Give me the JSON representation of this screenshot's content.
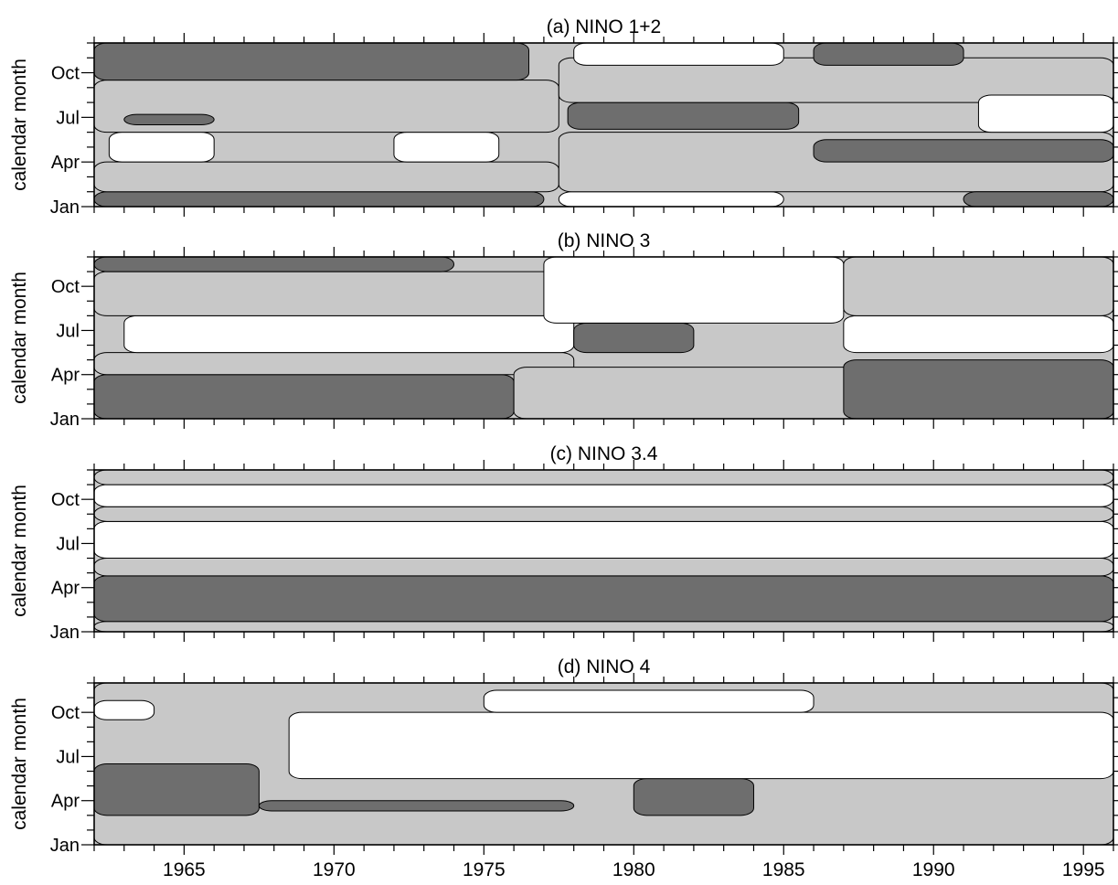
{
  "chart_data": {
    "type": "heatmap",
    "y_axis_label": "calendar month",
    "y_ticks": [
      "Jan",
      "Apr",
      "Jul",
      "Oct"
    ],
    "x_ticks": [
      1965,
      1970,
      1975,
      1980,
      1985,
      1990,
      1995
    ],
    "x_range": [
      1962,
      1996
    ],
    "y_range_months": [
      0,
      11
    ],
    "shading": {
      "low": "#6e6e6e",
      "mid": "#c8c8c8",
      "high": "#ffffff"
    },
    "panels": [
      {
        "title": "(a) NINO 1+2",
        "bands": [
          {
            "shade": "low",
            "y0": 0,
            "y1": 1.0,
            "x0": 1962,
            "x1": 1977
          },
          {
            "shade": "mid",
            "y0": 1.0,
            "y1": 3.0,
            "x0": 1962,
            "x1": 1977.5
          },
          {
            "shade": "high",
            "y0": 3.0,
            "y1": 5.0,
            "x0": 1962.5,
            "x1": 1966
          },
          {
            "shade": "high",
            "y0": 3.0,
            "y1": 5.0,
            "x0": 1972,
            "x1": 1975.5
          },
          {
            "shade": "mid",
            "y0": 5.0,
            "y1": 8.5,
            "x0": 1962,
            "x1": 1977.5
          },
          {
            "shade": "low",
            "y0": 5.5,
            "y1": 6.2,
            "x0": 1963,
            "x1": 1966
          },
          {
            "shade": "low",
            "y0": 8.5,
            "y1": 11,
            "x0": 1962,
            "x1": 1976.5
          },
          {
            "shade": "high",
            "y0": 0,
            "y1": 1.0,
            "x0": 1977.5,
            "x1": 1985
          },
          {
            "shade": "mid",
            "y0": 1.0,
            "y1": 5.0,
            "x0": 1977.5,
            "x1": 1996
          },
          {
            "shade": "low",
            "y0": 5.2,
            "y1": 7.0,
            "x0": 1977.8,
            "x1": 1985.5
          },
          {
            "shade": "mid",
            "y0": 7.0,
            "y1": 10,
            "x0": 1977.5,
            "x1": 1996
          },
          {
            "shade": "high",
            "y0": 9.5,
            "y1": 11,
            "x0": 1978,
            "x1": 1985
          },
          {
            "shade": "low",
            "y0": 9.5,
            "y1": 11,
            "x0": 1986,
            "x1": 1991
          },
          {
            "shade": "low",
            "y0": 3.0,
            "y1": 4.5,
            "x0": 1986,
            "x1": 1996
          },
          {
            "shade": "high",
            "y0": 5.0,
            "y1": 7.5,
            "x0": 1991.5,
            "x1": 1996
          },
          {
            "shade": "low",
            "y0": 0,
            "y1": 1.0,
            "x0": 1991,
            "x1": 1996
          }
        ]
      },
      {
        "title": "(b) NINO 3",
        "bands": [
          {
            "shade": "low",
            "y0": 0,
            "y1": 3.0,
            "x0": 1962,
            "x1": 1976
          },
          {
            "shade": "mid",
            "y0": 3.0,
            "y1": 4.5,
            "x0": 1962,
            "x1": 1978
          },
          {
            "shade": "high",
            "y0": 4.5,
            "y1": 7.0,
            "x0": 1963,
            "x1": 1978
          },
          {
            "shade": "mid",
            "y0": 7.0,
            "y1": 10.0,
            "x0": 1962,
            "x1": 1979
          },
          {
            "shade": "low",
            "y0": 10.0,
            "y1": 11,
            "x0": 1962,
            "x1": 1974
          },
          {
            "shade": "mid",
            "y0": 0,
            "y1": 3.5,
            "x0": 1976,
            "x1": 1996
          },
          {
            "shade": "low",
            "y0": 4.5,
            "y1": 6.5,
            "x0": 1978,
            "x1": 1982
          },
          {
            "shade": "high",
            "y0": 6.5,
            "y1": 11,
            "x0": 1977,
            "x1": 1987
          },
          {
            "shade": "low",
            "y0": 0,
            "y1": 4.0,
            "x0": 1987,
            "x1": 1996
          },
          {
            "shade": "high",
            "y0": 4.5,
            "y1": 7.0,
            "x0": 1987,
            "x1": 1996
          },
          {
            "shade": "mid",
            "y0": 7.0,
            "y1": 11,
            "x0": 1987,
            "x1": 1996
          }
        ]
      },
      {
        "title": "(c) NINO 3.4",
        "bands": [
          {
            "shade": "mid",
            "y0": 0,
            "y1": 0.7,
            "x0": 1962,
            "x1": 1996
          },
          {
            "shade": "low",
            "y0": 0.7,
            "y1": 3.8,
            "x0": 1962,
            "x1": 1996
          },
          {
            "shade": "mid",
            "y0": 3.8,
            "y1": 5.0,
            "x0": 1962,
            "x1": 1996
          },
          {
            "shade": "high",
            "y0": 5.0,
            "y1": 7.5,
            "x0": 1962,
            "x1": 1996
          },
          {
            "shade": "mid",
            "y0": 7.5,
            "y1": 8.5,
            "x0": 1962,
            "x1": 1996
          },
          {
            "shade": "high",
            "y0": 8.5,
            "y1": 10.0,
            "x0": 1962,
            "x1": 1996
          },
          {
            "shade": "mid",
            "y0": 10.0,
            "y1": 11,
            "x0": 1962,
            "x1": 1996
          }
        ]
      },
      {
        "title": "(d) NINO 4",
        "bands": [
          {
            "shade": "mid",
            "y0": 0,
            "y1": 11,
            "x0": 1962,
            "x1": 1996
          },
          {
            "shade": "low",
            "y0": 2.0,
            "y1": 5.5,
            "x0": 1962,
            "x1": 1967.5
          },
          {
            "shade": "low",
            "y0": 2.3,
            "y1": 3.0,
            "x0": 1967.5,
            "x1": 1978
          },
          {
            "shade": "low",
            "y0": 2.0,
            "y1": 4.5,
            "x0": 1980,
            "x1": 1984
          },
          {
            "shade": "high",
            "y0": 4.5,
            "y1": 9.0,
            "x0": 1968.5,
            "x1": 1996
          },
          {
            "shade": "high",
            "y0": 9.0,
            "y1": 10.5,
            "x0": 1975,
            "x1": 1986
          },
          {
            "shade": "high",
            "y0": 8.5,
            "y1": 9.8,
            "x0": 1962,
            "x1": 1964
          }
        ]
      }
    ]
  }
}
